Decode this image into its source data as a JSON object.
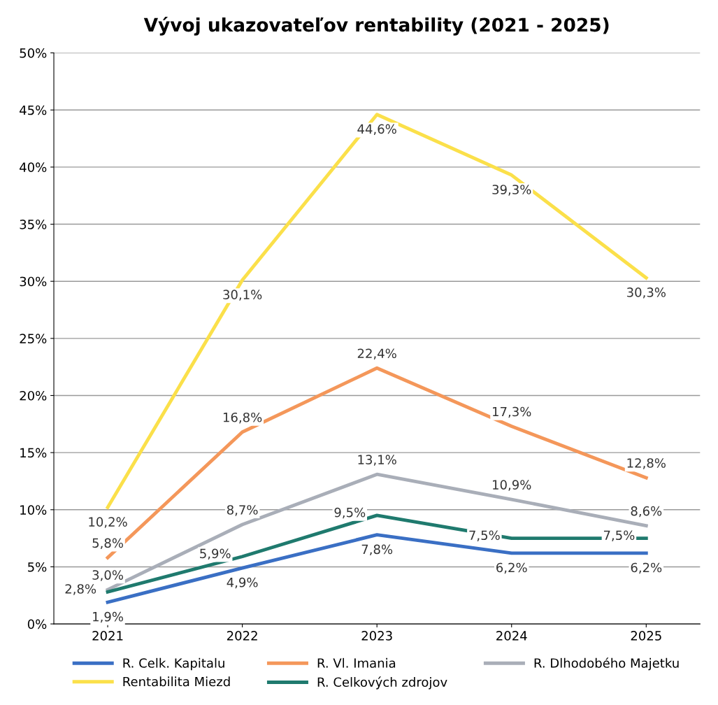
{
  "chart_data": {
    "type": "line",
    "title": "Vývoj ukazovateľov rentability (2021 - 2025)",
    "categories": [
      "2021",
      "2022",
      "2023",
      "2024",
      "2025"
    ],
    "series": [
      {
        "name": "R. Celk. Kapitalu",
        "color": "#3a6fc4",
        "values": [
          1.9,
          4.9,
          7.8,
          6.2,
          6.2
        ],
        "value_labels": [
          "1,9%",
          "4,9%",
          "7,8%",
          "6,2%",
          "6,2%"
        ]
      },
      {
        "name": "R. Vl. Imania",
        "color": "#f4975a",
        "values": [
          5.8,
          16.8,
          22.4,
          17.3,
          12.8
        ],
        "value_labels": [
          "5,8%",
          "16,8%",
          "22,4%",
          "17,3%",
          "12,8%"
        ]
      },
      {
        "name": "R. Dlhodobého Majetku",
        "color": "#a9aeb8",
        "values": [
          3.0,
          8.7,
          13.1,
          10.9,
          8.6
        ],
        "value_labels": [
          "3,0%",
          "8,7%",
          "13,1%",
          "10,9%",
          "8,6%"
        ]
      },
      {
        "name": "Rentabilita Miezd",
        "color": "#fbe04a",
        "values": [
          10.2,
          30.1,
          44.6,
          39.3,
          30.3
        ],
        "value_labels": [
          "10,2%",
          "30,1%",
          "44,6%",
          "39,3%",
          "30,3%"
        ]
      },
      {
        "name": "R. Celkových zdrojov",
        "color": "#1f7a6e",
        "values": [
          2.8,
          5.9,
          9.5,
          7.5,
          7.5
        ],
        "value_labels": [
          "2,8%",
          "5,9%",
          "9,5%",
          "7,5%",
          "7,5%"
        ]
      }
    ],
    "ylim": [
      0,
      50
    ],
    "yticks": [
      {
        "value": 0,
        "label": "0%"
      },
      {
        "value": 5,
        "label": "5%"
      },
      {
        "value": 10,
        "label": "10%"
      },
      {
        "value": 15,
        "label": "15%"
      },
      {
        "value": 20,
        "label": "20%"
      },
      {
        "value": 25,
        "label": "25%"
      },
      {
        "value": 30,
        "label": "30%"
      },
      {
        "value": 35,
        "label": "35%"
      },
      {
        "value": 40,
        "label": "40%"
      },
      {
        "value": 45,
        "label": "45%"
      },
      {
        "value": 50,
        "label": "50%"
      }
    ],
    "grid": "y",
    "legend": "bottom",
    "marker": "none",
    "line_style": "solid"
  }
}
